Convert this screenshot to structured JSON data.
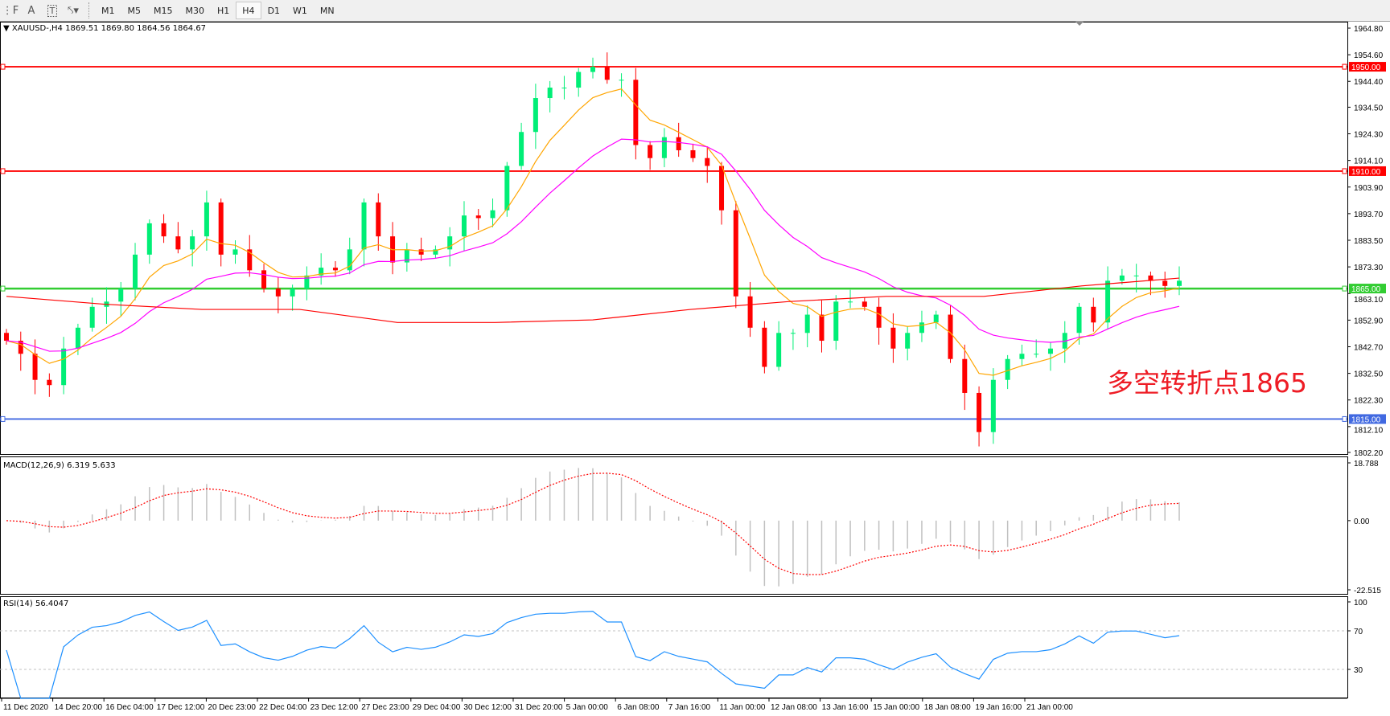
{
  "toolbar": {
    "icons": [
      "fibonacci-icon",
      "text-icon",
      "text-label-icon",
      "arrows-icon"
    ],
    "text_icon": "A",
    "timeframes": [
      "M1",
      "M5",
      "M15",
      "M30",
      "H1",
      "H4",
      "D1",
      "W1",
      "MN"
    ],
    "active_timeframe": "H4"
  },
  "chart": {
    "symbol_header": "XAUUSD-,H4  1869.51 1869.80 1864.56 1864.67",
    "annotation": "多空转折点1865",
    "price_ticks": [
      "1964.80",
      "1954.60",
      "1944.40",
      "1934.50",
      "1924.30",
      "1914.10",
      "1903.90",
      "1893.70",
      "1883.50",
      "1873.30",
      "1863.10",
      "1852.90",
      "1842.70",
      "1832.50",
      "1822.30",
      "1812.10",
      "1802.20"
    ],
    "price_range": [
      1802.2,
      1964.8
    ],
    "levels": [
      {
        "price": 1950.0,
        "label": "1950.00",
        "color": "#ff0000"
      },
      {
        "price": 1910.0,
        "label": "1910.00",
        "color": "#ff0000"
      },
      {
        "price": 1865.0,
        "label": "1865.00",
        "color": "#32cd32"
      },
      {
        "price": 1815.0,
        "label": "1815.00",
        "color": "#4169e1"
      }
    ],
    "time_ticks": [
      "11 Dec 2020",
      "14 Dec 20:00",
      "16 Dec 04:00",
      "17 Dec 12:00",
      "20 Dec 23:00",
      "22 Dec 04:00",
      "23 Dec 12:00",
      "27 Dec 23:00",
      "29 Dec 04:00",
      "30 Dec 12:00",
      "31 Dec 20:00",
      "5 Jan 00:00",
      "6 Jan 08:00",
      "7 Jan 16:00",
      "11 Jan 00:00",
      "12 Jan 08:00",
      "13 Jan 16:00",
      "15 Jan 00:00",
      "18 Jan 08:00",
      "19 Jan 16:00",
      "21 Jan 00:00"
    ],
    "bull_color": "#00ee76",
    "bear_color": "#ff0000",
    "closes": [
      1845,
      1840,
      1830,
      1828,
      1842,
      1850,
      1858,
      1860,
      1865,
      1878,
      1890,
      1885,
      1880,
      1885,
      1898,
      1878,
      1880,
      1872,
      1865,
      1862,
      1865,
      1870,
      1873,
      1872,
      1880,
      1898,
      1885,
      1875,
      1880,
      1878,
      1880,
      1885,
      1893,
      1892,
      1895,
      1912,
      1925,
      1938,
      1942,
      1942,
      1948,
      1950,
      1945,
      1945,
      1920,
      1915,
      1923,
      1918,
      1915,
      1912,
      1895,
      1862,
      1850,
      1835,
      1848,
      1848,
      1855,
      1845,
      1860,
      1860,
      1858,
      1850,
      1842,
      1848,
      1852,
      1855,
      1838,
      1825,
      1810,
      1830,
      1838,
      1840,
      1840,
      1842,
      1848,
      1858,
      1852,
      1868,
      1870,
      1870,
      1868,
      1866,
      1868
    ],
    "ma_long": [
      1862,
      1859,
      1857,
      1857,
      1852,
      1852,
      1853,
      1857,
      1860,
      1862,
      1862,
      1866,
      1869
    ],
    "ma_fast_color": "#ffa500",
    "ma_mid_color": "#ff00ff",
    "ma_long_color": "#ff0000"
  },
  "macd": {
    "title": "MACD(12,26,9) 6.319 5.633",
    "ticks": [
      "18.788",
      "0.00",
      "-22.515"
    ],
    "range": [
      -22.515,
      18.788
    ]
  },
  "rsi": {
    "title": "RSI(14) 56.4047",
    "ticks": [
      "100",
      "70",
      "30"
    ],
    "levels": [
      70,
      30
    ],
    "line_color": "#1e90ff"
  }
}
